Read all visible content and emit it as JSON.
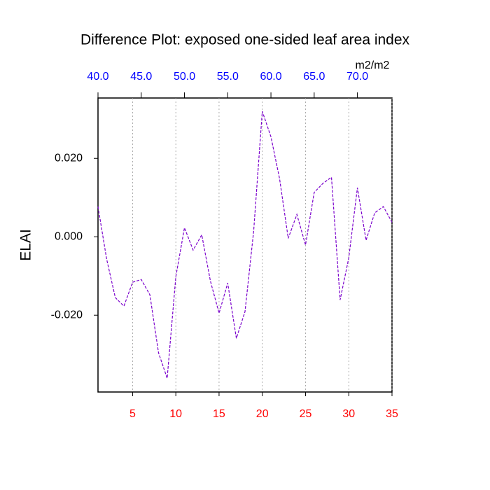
{
  "chart_data": {
    "type": "line",
    "title": "Difference Plot: exposed one-sided leaf area index",
    "y_label": "ELAI",
    "x2_units": "m2/m2",
    "x": [
      1,
      2,
      3,
      4,
      5,
      6,
      7,
      8,
      9,
      10,
      11,
      12,
      13,
      14,
      15,
      16,
      17,
      18,
      19,
      20,
      21,
      22,
      23,
      24,
      25,
      26,
      27,
      28,
      29,
      30,
      31,
      32,
      33,
      34,
      35
    ],
    "values": [
      0.0077,
      -0.0057,
      -0.0155,
      -0.0177,
      -0.0116,
      -0.0109,
      -0.0148,
      -0.0296,
      -0.0361,
      -0.0102,
      0.0023,
      -0.0034,
      0.0005,
      -0.0113,
      -0.0195,
      -0.0118,
      -0.0259,
      -0.0191,
      0.0014,
      0.032,
      0.0255,
      0.0148,
      -0.0004,
      0.0057,
      -0.0021,
      0.0113,
      0.0136,
      0.0152,
      -0.0161,
      -0.0054,
      0.0125,
      -0.0009,
      0.0061,
      0.0077,
      0.0037
    ],
    "color": "#7a00cc",
    "dashed": true,
    "xlim": [
      1,
      35
    ],
    "xticks": [
      5,
      10,
      15,
      20,
      25,
      30,
      35
    ],
    "xtick_color": "#ff0000",
    "x2lim": [
      40,
      74
    ],
    "x2ticks": [
      {
        "value": 40,
        "label": "40.0"
      },
      {
        "value": 45,
        "label": "45.0"
      },
      {
        "value": 50,
        "label": "50.0"
      },
      {
        "value": 55,
        "label": "55.0"
      },
      {
        "value": 60,
        "label": "60.0"
      },
      {
        "value": 65,
        "label": "65.0"
      },
      {
        "value": 70,
        "label": "70.0"
      }
    ],
    "x2tick_color": "#0000ff",
    "ylim": [
      -0.0396,
      0.0354
    ],
    "yticks": [
      {
        "value": -0.02,
        "label": "-0.020"
      },
      {
        "value": 0,
        "label": "0.000"
      },
      {
        "value": 0.02,
        "label": "0.020"
      }
    ],
    "grid": true
  }
}
